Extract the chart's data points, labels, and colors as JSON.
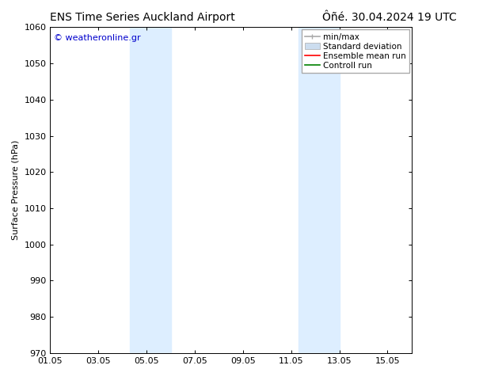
{
  "title_left": "ENS Time Series Auckland Airport",
  "title_right": "Ôñé. 30.04.2024 19 UTC",
  "ylabel": "Surface Pressure (hPa)",
  "ylim": [
    970,
    1060
  ],
  "yticks": [
    970,
    980,
    990,
    1000,
    1010,
    1020,
    1030,
    1040,
    1050,
    1060
  ],
  "xlim_start": 0,
  "xlim_end": 15,
  "xtick_positions": [
    0,
    2,
    4,
    6,
    8,
    10,
    12,
    14
  ],
  "xtick_labels": [
    "01.05",
    "03.05",
    "05.05",
    "07.05",
    "09.05",
    "11.05",
    "13.05",
    "15.05"
  ],
  "shaded_bands": [
    {
      "x_start": 3.3,
      "x_end": 5.0
    },
    {
      "x_start": 10.3,
      "x_end": 12.0
    }
  ],
  "shade_color": "#ddeeff",
  "watermark": "© weatheronline.gr",
  "watermark_color": "#0000cc",
  "legend_items": [
    {
      "label": "min/max",
      "color": "#aaaaaa",
      "lw": 1.2,
      "linestyle": "-",
      "type": "line_with_caps"
    },
    {
      "label": "Standard deviation",
      "color": "#ccddef",
      "lw": 6,
      "linestyle": "-",
      "type": "patch"
    },
    {
      "label": "Ensemble mean run",
      "color": "red",
      "lw": 1.2,
      "linestyle": "-",
      "type": "line"
    },
    {
      "label": "Controll run",
      "color": "green",
      "lw": 1.2,
      "linestyle": "-",
      "type": "line"
    }
  ],
  "background_color": "#ffffff",
  "title_fontsize": 10,
  "tick_fontsize": 8,
  "ylabel_fontsize": 8,
  "watermark_fontsize": 8,
  "legend_fontsize": 7.5
}
